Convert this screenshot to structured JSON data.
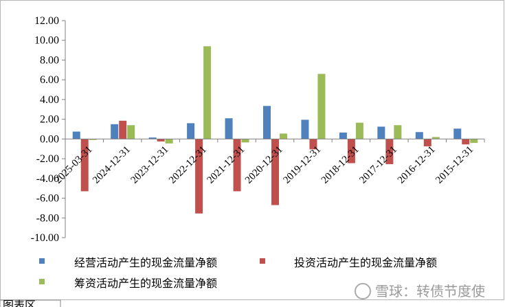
{
  "chart_data": {
    "type": "bar",
    "title": "",
    "xlabel": "",
    "ylabel": "",
    "ylim": [
      -10,
      12
    ],
    "yticks": [
      "12.00",
      "10.00",
      "8.00",
      "6.00",
      "4.00",
      "2.00",
      "0.00",
      "-2.00",
      "-4.00",
      "-6.00",
      "-8.00",
      "-10.00"
    ],
    "categories": [
      "2025-03-31",
      "2024-12-31",
      "2023-12-31",
      "2022-12-31",
      "2021-12-31",
      "2020-12-31",
      "2019-12-31",
      "2018-12-31",
      "2017-12-31",
      "2016-12-31",
      "2015-12-31"
    ],
    "series": [
      {
        "name": "经营活动产生的现金流量净额",
        "color": "#4f81bd",
        "values": [
          0.75,
          1.5,
          0.15,
          1.6,
          2.1,
          3.35,
          1.95,
          0.65,
          1.25,
          0.7,
          1.05
        ]
      },
      {
        "name": "投资活动产生的现金流量净额",
        "color": "#c0504d",
        "values": [
          -5.3,
          1.85,
          -0.25,
          -7.55,
          -5.3,
          -6.7,
          -1.05,
          -2.45,
          -2.55,
          -0.75,
          -0.55
        ]
      },
      {
        "name": "筹资活动产生的现金流量净额",
        "color": "#9bbb59",
        "values": [
          -0.1,
          1.4,
          -0.45,
          9.4,
          -0.35,
          0.55,
          6.6,
          1.65,
          1.4,
          0.2,
          -0.4
        ]
      }
    ],
    "grid": false,
    "legend_position": "bottom"
  },
  "watermark": "雪球：转债节度使",
  "bottom_tab": "图表区"
}
